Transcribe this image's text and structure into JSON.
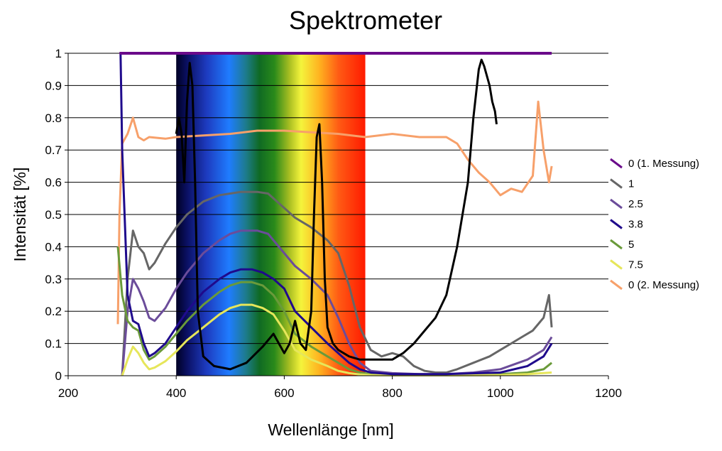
{
  "chart_data": {
    "type": "line",
    "title": "Spektrometer",
    "xlabel": "Wellenlänge [nm]",
    "ylabel": "Intensität [%]",
    "xlim": [
      200,
      1200
    ],
    "ylim": [
      0,
      1
    ],
    "xticks": [
      "200",
      "400",
      "600",
      "800",
      "1000",
      "1200"
    ],
    "yticks": [
      "0",
      "0.1",
      "0.2",
      "0.3",
      "0.4",
      "0.5",
      "0.6",
      "0.7",
      "0.8",
      "0.9",
      "1"
    ],
    "grid": "horizontal",
    "legend_position": "right",
    "spectrum_band": {
      "x_start": 400,
      "x_end": 750
    },
    "series": [
      {
        "name": "0 (1. Messung)",
        "color": "#6a0a8a",
        "x": [
          295,
          1095
        ],
        "y": [
          1.0,
          1.0
        ]
      },
      {
        "name": "1",
        "color": "#666666",
        "x": [
          300,
          310,
          320,
          330,
          340,
          350,
          360,
          380,
          400,
          420,
          450,
          480,
          500,
          520,
          550,
          570,
          580,
          600,
          620,
          650,
          680,
          700,
          720,
          740,
          760,
          780,
          800,
          820,
          840,
          860,
          880,
          900,
          920,
          950,
          980,
          1000,
          1020,
          1040,
          1060,
          1080,
          1090,
          1095
        ],
        "y": [
          0.0,
          0.3,
          0.45,
          0.4,
          0.38,
          0.33,
          0.35,
          0.41,
          0.46,
          0.5,
          0.54,
          0.56,
          0.565,
          0.57,
          0.57,
          0.565,
          0.55,
          0.52,
          0.49,
          0.46,
          0.42,
          0.38,
          0.28,
          0.15,
          0.08,
          0.06,
          0.07,
          0.06,
          0.03,
          0.015,
          0.01,
          0.01,
          0.02,
          0.04,
          0.06,
          0.08,
          0.1,
          0.12,
          0.14,
          0.18,
          0.25,
          0.15
        ]
      },
      {
        "name": "2.5",
        "color": "#6b4c9a",
        "x": [
          300,
          310,
          320,
          330,
          340,
          350,
          360,
          380,
          400,
          420,
          450,
          480,
          500,
          520,
          550,
          570,
          580,
          600,
          620,
          650,
          680,
          700,
          720,
          740,
          760,
          800,
          850,
          900,
          950,
          1000,
          1050,
          1080,
          1095
        ],
        "y": [
          0.0,
          0.2,
          0.3,
          0.27,
          0.23,
          0.18,
          0.17,
          0.21,
          0.27,
          0.32,
          0.38,
          0.42,
          0.44,
          0.45,
          0.45,
          0.44,
          0.42,
          0.38,
          0.34,
          0.3,
          0.25,
          0.18,
          0.1,
          0.04,
          0.015,
          0.008,
          0.005,
          0.005,
          0.01,
          0.02,
          0.05,
          0.08,
          0.12
        ]
      },
      {
        "name": "3.8",
        "color": "#1f0a8c",
        "x": [
          297,
          300,
          310,
          320,
          330,
          340,
          350,
          360,
          380,
          400,
          420,
          450,
          480,
          500,
          520,
          540,
          560,
          580,
          600,
          620,
          650,
          680,
          700,
          720,
          740,
          760,
          800,
          900,
          1000,
          1050,
          1080,
          1095
        ],
        "y": [
          1.0,
          0.7,
          0.25,
          0.17,
          0.16,
          0.1,
          0.06,
          0.07,
          0.1,
          0.15,
          0.2,
          0.26,
          0.3,
          0.32,
          0.33,
          0.33,
          0.32,
          0.3,
          0.27,
          0.2,
          0.15,
          0.1,
          0.07,
          0.04,
          0.02,
          0.01,
          0.005,
          0.005,
          0.01,
          0.03,
          0.06,
          0.1
        ]
      },
      {
        "name": "5",
        "color": "#6a9a3a",
        "x": [
          292,
          300,
          310,
          320,
          330,
          340,
          350,
          360,
          380,
          400,
          420,
          450,
          480,
          500,
          520,
          540,
          560,
          580,
          600,
          620,
          650,
          680,
          700,
          720,
          740,
          760,
          800,
          900,
          1000,
          1050,
          1080,
          1095
        ],
        "y": [
          0.4,
          0.25,
          0.17,
          0.15,
          0.14,
          0.08,
          0.05,
          0.06,
          0.09,
          0.13,
          0.17,
          0.22,
          0.26,
          0.28,
          0.29,
          0.29,
          0.28,
          0.25,
          0.2,
          0.13,
          0.09,
          0.06,
          0.04,
          0.02,
          0.01,
          0.005,
          0.003,
          0.003,
          0.005,
          0.01,
          0.02,
          0.04
        ]
      },
      {
        "name": "7.5",
        "color": "#e6e65a",
        "x": [
          300,
          310,
          320,
          330,
          340,
          350,
          360,
          380,
          400,
          420,
          450,
          480,
          500,
          520,
          540,
          560,
          580,
          600,
          620,
          650,
          680,
          700,
          720,
          740,
          760,
          800,
          900,
          1000,
          1050,
          1095
        ],
        "y": [
          0.0,
          0.05,
          0.09,
          0.07,
          0.04,
          0.02,
          0.025,
          0.045,
          0.075,
          0.11,
          0.15,
          0.19,
          0.21,
          0.22,
          0.22,
          0.21,
          0.19,
          0.14,
          0.08,
          0.05,
          0.03,
          0.015,
          0.008,
          0.004,
          0.002,
          0.001,
          0.001,
          0.002,
          0.005,
          0.01
        ]
      },
      {
        "name": "0 (2. Messung)",
        "color": "#f7a06a",
        "x": [
          292,
          295,
          300,
          310,
          320,
          330,
          340,
          350,
          380,
          400,
          450,
          500,
          550,
          600,
          650,
          700,
          750,
          800,
          850,
          900,
          920,
          940,
          960,
          980,
          1000,
          1020,
          1040,
          1060,
          1070,
          1080,
          1090,
          1095
        ],
        "y": [
          0.16,
          0.5,
          0.72,
          0.75,
          0.8,
          0.74,
          0.73,
          0.74,
          0.735,
          0.74,
          0.745,
          0.75,
          0.76,
          0.76,
          0.755,
          0.75,
          0.74,
          0.75,
          0.74,
          0.74,
          0.72,
          0.67,
          0.63,
          0.6,
          0.56,
          0.58,
          0.57,
          0.62,
          0.85,
          0.7,
          0.6,
          0.65
        ]
      },
      {
        "color": "#000000",
        "x": [
          400,
          405,
          410,
          415,
          420,
          425,
          430,
          435,
          440,
          450,
          470,
          500,
          530,
          560,
          580,
          590,
          600,
          610,
          620,
          630,
          640,
          650,
          655,
          660,
          665,
          670,
          675,
          680,
          690,
          700,
          720,
          740,
          760,
          780,
          800,
          820,
          840,
          860,
          880,
          900,
          920,
          940,
          950,
          960,
          965,
          970,
          980,
          985,
          990,
          993
        ],
        "y": [
          0.75,
          0.8,
          0.75,
          0.6,
          0.85,
          0.97,
          0.9,
          0.6,
          0.2,
          0.06,
          0.03,
          0.02,
          0.04,
          0.09,
          0.13,
          0.1,
          0.07,
          0.1,
          0.17,
          0.1,
          0.08,
          0.2,
          0.5,
          0.74,
          0.78,
          0.6,
          0.3,
          0.15,
          0.1,
          0.08,
          0.06,
          0.05,
          0.05,
          0.05,
          0.05,
          0.07,
          0.1,
          0.14,
          0.18,
          0.25,
          0.4,
          0.6,
          0.8,
          0.95,
          0.98,
          0.96,
          0.9,
          0.85,
          0.82,
          0.78
        ]
      }
    ]
  }
}
